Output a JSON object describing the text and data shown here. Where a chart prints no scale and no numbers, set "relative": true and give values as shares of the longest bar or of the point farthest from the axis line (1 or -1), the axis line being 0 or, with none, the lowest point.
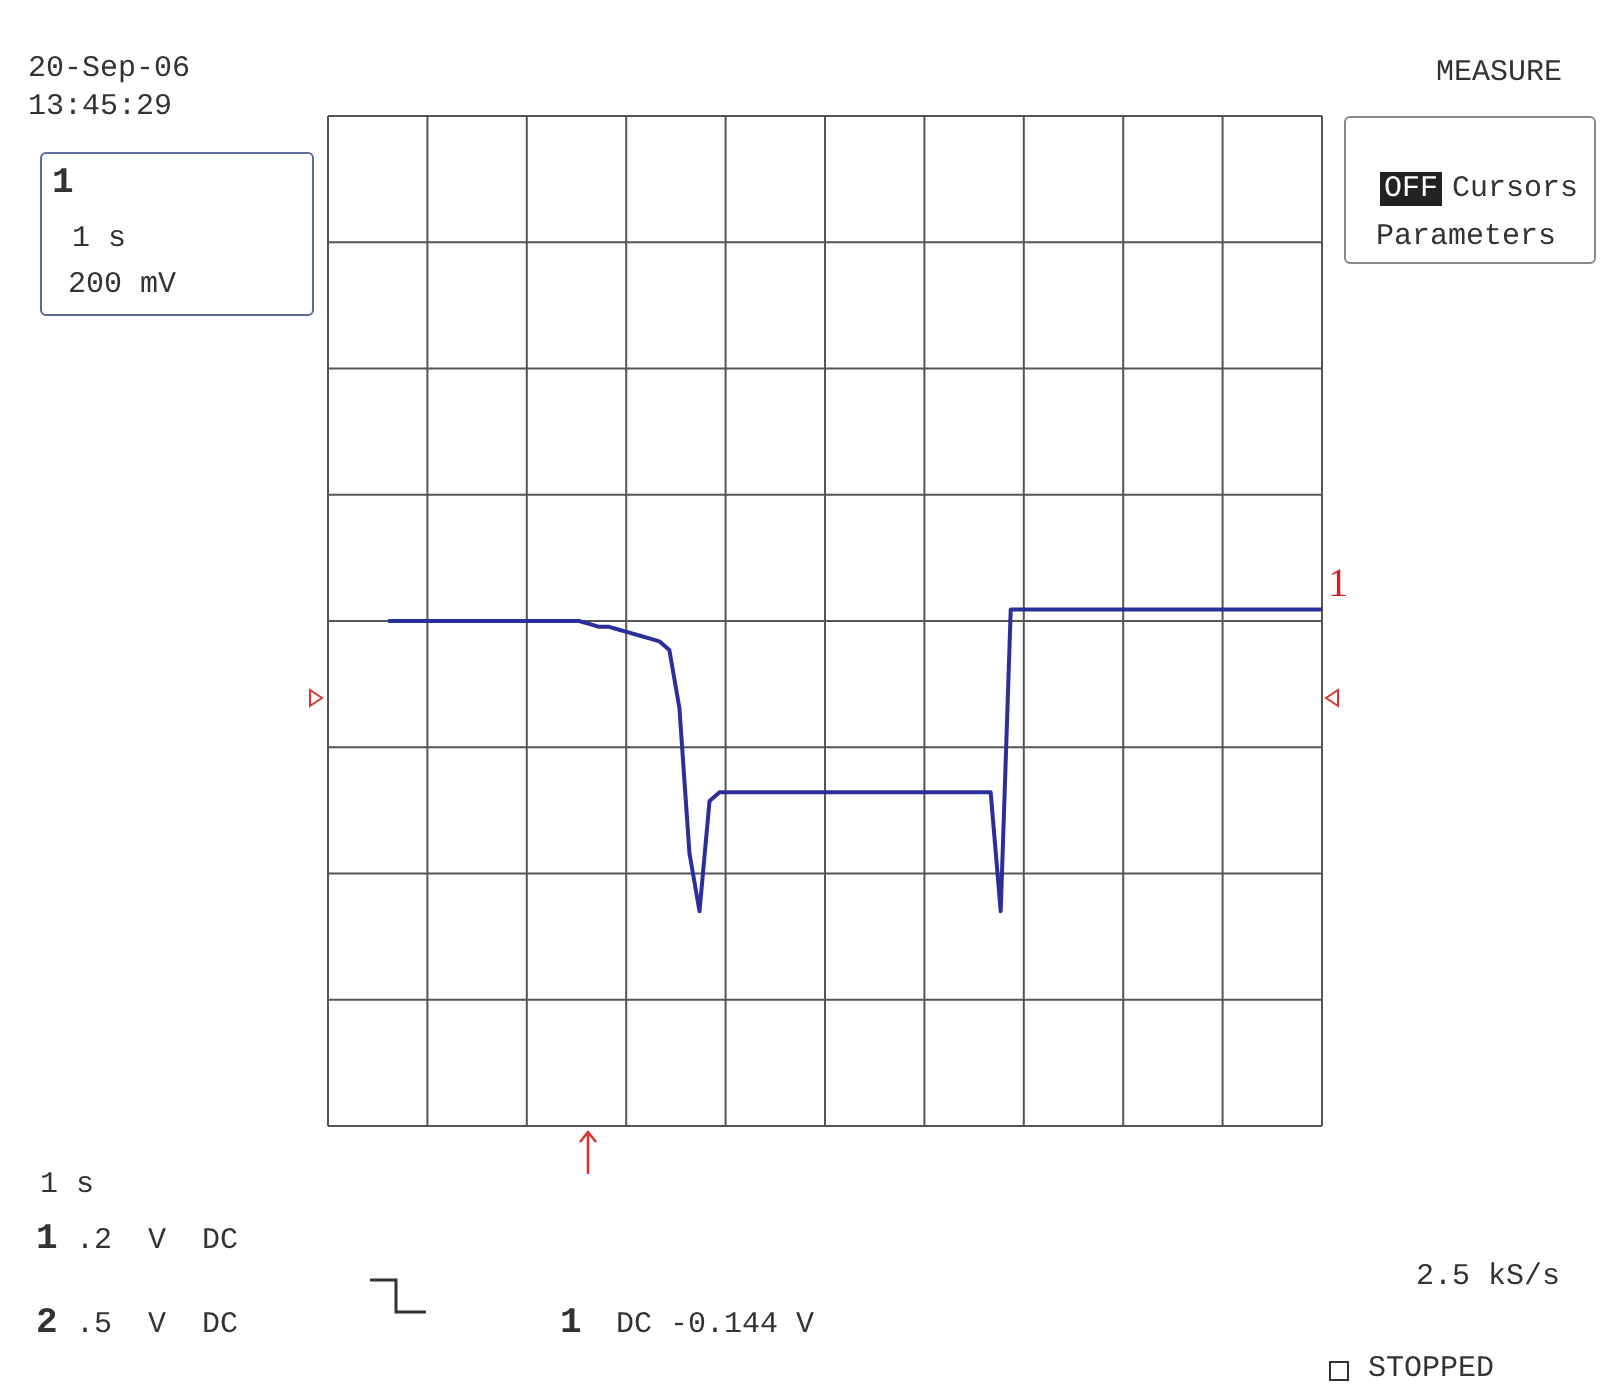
{
  "chart_data": {
    "type": "line",
    "relative": true,
    "grid": true,
    "marker": "none",
    "line_style": "solid",
    "categories": [
      null,
      null,
      null,
      null,
      null,
      null,
      null,
      null,
      null,
      null,
      null,
      null,
      null,
      null,
      null,
      null,
      null,
      null,
      null,
      null,
      null,
      null,
      null,
      null,
      null,
      null,
      null,
      null,
      null,
      null,
      null,
      null,
      null,
      null,
      null,
      null,
      null,
      null,
      null,
      null,
      null,
      null,
      null,
      null,
      null,
      null,
      null,
      null,
      null,
      null,
      null,
      null,
      null,
      null,
      null,
      null,
      null,
      null,
      null,
      null,
      null,
      null,
      null,
      null,
      null,
      null,
      null,
      null,
      null,
      null,
      null,
      null,
      null,
      null,
      null,
      null,
      null,
      null,
      null,
      null,
      null,
      null,
      null,
      null,
      null,
      null,
      null,
      null,
      null,
      null,
      null,
      null,
      null,
      null,
      null,
      null,
      null,
      null,
      null,
      null
    ],
    "series": [
      {
        "color": "#2b2f9c",
        "values": [
          null,
          null,
          null,
          null,
          null,
          null,
          0,
          0,
          0,
          0,
          0,
          0,
          0,
          0,
          0,
          0,
          0,
          0,
          0,
          0,
          0,
          0,
          0,
          0,
          0,
          0,
          -0.01,
          -0.02,
          -0.02,
          -0.03,
          -0.04,
          -0.05,
          -0.06,
          -0.07,
          -0.1,
          -0.3,
          -0.8,
          -1,
          -0.62,
          -0.59,
          -0.59,
          -0.59,
          -0.59,
          -0.59,
          -0.59,
          -0.59,
          -0.59,
          -0.59,
          -0.59,
          -0.59,
          -0.59,
          -0.59,
          -0.59,
          -0.59,
          -0.59,
          -0.59,
          -0.59,
          -0.59,
          -0.59,
          -0.59,
          -0.59,
          -0.59,
          -0.59,
          -0.59,
          -0.59,
          -0.59,
          -0.59,
          -1,
          0.04,
          0.04,
          0.04,
          0.04,
          0.04,
          0.04,
          0.04,
          0.04,
          0.04,
          0.04,
          0.04,
          0.04,
          0.04,
          0.04,
          0.04,
          0.04,
          0.04,
          0.04,
          0.04,
          0.04,
          0.04,
          0.04,
          0.04,
          0.04,
          0.04,
          0.04,
          0.04,
          0.04,
          0.04,
          0.04,
          0.04,
          0.04
        ]
      }
    ],
    "annotations": [
      "20-Sep-06",
      "13:45:29",
      "1",
      "1 s",
      "200 mV",
      "MEASURE",
      "OFF",
      "Cursors",
      "Parameters",
      "1 s",
      "1",
      ".2  V  DC",
      "2",
      ".5  V  DC",
      "1",
      "DC -0.144 V",
      "2.5 kS/s",
      "STOPPED",
      "1"
    ]
  }
}
